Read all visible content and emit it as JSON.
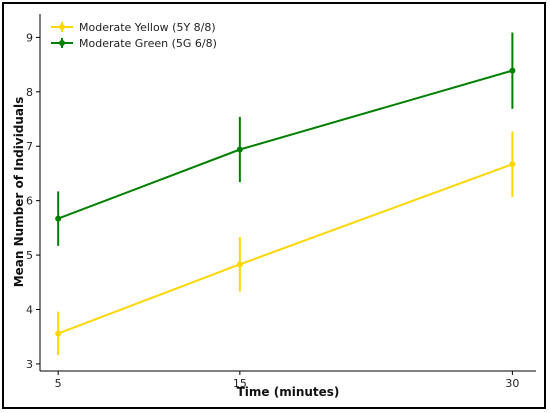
{
  "chart_data": {
    "type": "line",
    "xlabel": "Time (minutes)",
    "ylabel": "Mean Number of Individuals",
    "x": [
      5,
      15,
      30
    ],
    "xticks": [
      5,
      15,
      30
    ],
    "xlim": [
      4,
      31.3
    ],
    "ylim": [
      2.87,
      9.43
    ],
    "yticks": [
      3,
      4,
      5,
      6,
      7,
      8,
      9
    ],
    "grid": false,
    "legend_position": "top-left",
    "series": [
      {
        "name": "Moderate Yellow (5Y 8/8)",
        "color": "#FFD700",
        "values": [
          3.56,
          4.83,
          6.67
        ],
        "error": [
          0.4,
          0.5,
          0.6
        ]
      },
      {
        "name": "Moderate Green (5G 6/8)",
        "color": "#008000",
        "values": [
          5.67,
          6.94,
          8.39
        ],
        "error": [
          0.5,
          0.6,
          0.7
        ]
      }
    ]
  }
}
